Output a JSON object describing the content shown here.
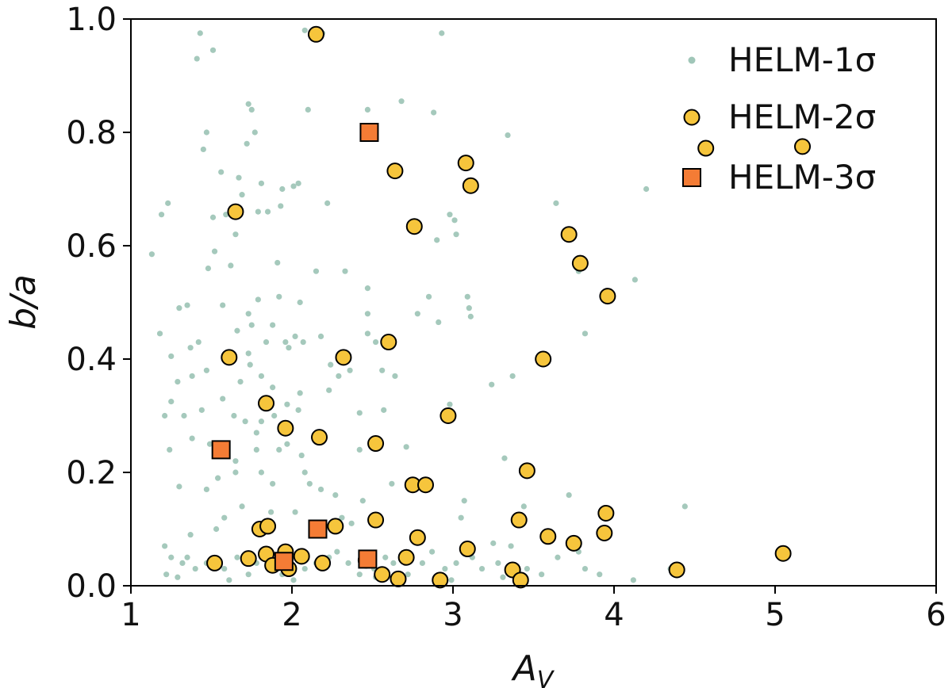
{
  "chart_data": {
    "type": "scatter",
    "xlabel": "A_V",
    "ylabel": "b/a",
    "xlim": [
      1,
      6
    ],
    "ylim": [
      0,
      1
    ],
    "xticks": [
      "1",
      "2",
      "3",
      "4",
      "5",
      "6"
    ],
    "yticks": [
      "0.0",
      "0.2",
      "0.4",
      "0.6",
      "0.8",
      "1.0"
    ],
    "grid": false,
    "legend_position": "top-right",
    "series": [
      {
        "name": "HELM-1σ",
        "marker": "dot",
        "color": "#8fbcab",
        "points": [
          [
            1.43,
            0.975
          ],
          [
            1.51,
            0.945
          ],
          [
            1.41,
            0.93
          ],
          [
            2.08,
            0.98
          ],
          [
            2.93,
            0.975
          ],
          [
            2.19,
            0.975
          ],
          [
            1.73,
            0.85
          ],
          [
            1.75,
            0.84
          ],
          [
            2.1,
            0.84
          ],
          [
            1.47,
            0.8
          ],
          [
            2.68,
            0.855
          ],
          [
            2.88,
            0.835
          ],
          [
            2.47,
            0.84
          ],
          [
            3.34,
            0.795
          ],
          [
            1.77,
            0.8
          ],
          [
            1.72,
            0.78
          ],
          [
            1.45,
            0.77
          ],
          [
            1.56,
            0.73
          ],
          [
            1.67,
            0.72
          ],
          [
            1.81,
            0.71
          ],
          [
            1.94,
            0.7
          ],
          [
            2.01,
            0.705
          ],
          [
            2.04,
            0.71
          ],
          [
            1.69,
            0.69
          ],
          [
            1.93,
            0.67
          ],
          [
            1.23,
            0.675
          ],
          [
            1.59,
            0.655
          ],
          [
            2.22,
            0.675
          ],
          [
            1.51,
            0.65
          ],
          [
            1.19,
            0.655
          ],
          [
            1.65,
            0.62
          ],
          [
            1.79,
            0.66
          ],
          [
            1.85,
            0.66
          ],
          [
            2.98,
            0.655
          ],
          [
            3.01,
            0.645
          ],
          [
            3.64,
            0.675
          ],
          [
            4.2,
            0.7
          ],
          [
            3.02,
            0.62
          ],
          [
            2.9,
            0.61
          ],
          [
            1.13,
            0.585
          ],
          [
            1.52,
            0.59
          ],
          [
            1.62,
            0.565
          ],
          [
            1.48,
            0.56
          ],
          [
            1.91,
            0.57
          ],
          [
            2.15,
            0.555
          ],
          [
            2.33,
            0.555
          ],
          [
            3.78,
            0.555
          ],
          [
            4.13,
            0.54
          ],
          [
            1.35,
            0.495
          ],
          [
            1.57,
            0.495
          ],
          [
            1.73,
            0.48
          ],
          [
            1.79,
            0.505
          ],
          [
            1.92,
            0.51
          ],
          [
            2.05,
            0.5
          ],
          [
            2.47,
            0.525
          ],
          [
            2.85,
            0.51
          ],
          [
            3.09,
            0.51
          ],
          [
            1.3,
            0.49
          ],
          [
            1.88,
            0.46
          ],
          [
            1.75,
            0.46
          ],
          [
            1.66,
            0.45
          ],
          [
            2.47,
            0.48
          ],
          [
            2.78,
            0.48
          ],
          [
            3.1,
            0.49
          ],
          [
            3.82,
            0.445
          ],
          [
            2.91,
            0.465
          ],
          [
            3.11,
            0.475
          ],
          [
            1.18,
            0.445
          ],
          [
            1.42,
            0.43
          ],
          [
            1.37,
            0.42
          ],
          [
            1.25,
            0.405
          ],
          [
            1.62,
            0.41
          ],
          [
            1.73,
            0.41
          ],
          [
            1.84,
            0.43
          ],
          [
            1.96,
            0.43
          ],
          [
            2.02,
            0.44
          ],
          [
            2.18,
            0.44
          ],
          [
            2.47,
            0.445
          ],
          [
            2.52,
            0.43
          ],
          [
            1.98,
            0.42
          ],
          [
            2.07,
            0.43
          ],
          [
            1.74,
            0.39
          ],
          [
            1.47,
            0.38
          ],
          [
            1.38,
            0.37
          ],
          [
            1.29,
            0.36
          ],
          [
            1.68,
            0.36
          ],
          [
            1.81,
            0.37
          ],
          [
            1.88,
            0.35
          ],
          [
            2.24,
            0.39
          ],
          [
            2.36,
            0.38
          ],
          [
            2.29,
            0.37
          ],
          [
            2.23,
            0.345
          ],
          [
            2.56,
            0.38
          ],
          [
            2.64,
            0.37
          ],
          [
            2.05,
            0.34
          ],
          [
            1.97,
            0.32
          ],
          [
            3.24,
            0.355
          ],
          [
            3.37,
            0.37
          ],
          [
            1.57,
            0.33
          ],
          [
            1.44,
            0.31
          ],
          [
            1.25,
            0.325
          ],
          [
            1.21,
            0.3
          ],
          [
            1.33,
            0.3
          ],
          [
            1.64,
            0.3
          ],
          [
            1.71,
            0.29
          ],
          [
            1.81,
            0.29
          ],
          [
            1.89,
            0.3
          ],
          [
            2.04,
            0.31
          ],
          [
            2.42,
            0.305
          ],
          [
            2.57,
            0.31
          ],
          [
            2.98,
            0.32
          ],
          [
            2.94,
            0.3
          ],
          [
            1.38,
            0.26
          ],
          [
            1.49,
            0.25
          ],
          [
            1.24,
            0.24
          ],
          [
            1.78,
            0.27
          ],
          [
            1.78,
            0.24
          ],
          [
            1.97,
            0.25
          ],
          [
            1.65,
            0.22
          ],
          [
            1.92,
            0.24
          ],
          [
            2.06,
            0.23
          ],
          [
            2.42,
            0.24
          ],
          [
            2.71,
            0.245
          ],
          [
            3.32,
            0.225
          ],
          [
            3.46,
            0.21
          ],
          [
            1.65,
            0.2
          ],
          [
            1.81,
            0.2
          ],
          [
            1.88,
            0.18
          ],
          [
            1.54,
            0.19
          ],
          [
            1.47,
            0.17
          ],
          [
            1.3,
            0.175
          ],
          [
            2.08,
            0.2
          ],
          [
            2.11,
            0.18
          ],
          [
            2.18,
            0.17
          ],
          [
            2.27,
            0.16
          ],
          [
            2.62,
            0.18
          ],
          [
            2.73,
            0.17
          ],
          [
            2.44,
            0.15
          ],
          [
            3.07,
            0.15
          ],
          [
            3.42,
            0.12
          ],
          [
            3.44,
            0.14
          ],
          [
            3.72,
            0.16
          ],
          [
            4.44,
            0.14
          ],
          [
            1.69,
            0.14
          ],
          [
            1.87,
            0.13
          ],
          [
            2.02,
            0.13
          ],
          [
            2.31,
            0.12
          ],
          [
            2.37,
            0.11
          ],
          [
            1.58,
            0.12
          ],
          [
            1.53,
            0.1
          ],
          [
            1.37,
            0.09
          ],
          [
            1.21,
            0.07
          ],
          [
            3.05,
            0.12
          ],
          [
            3.36,
            0.07
          ],
          [
            3.25,
            0.075
          ],
          [
            3.78,
            0.06
          ],
          [
            1.25,
            0.05
          ],
          [
            1.32,
            0.04
          ],
          [
            1.4,
            0.03
          ],
          [
            1.35,
            0.05
          ],
          [
            1.47,
            0.04
          ],
          [
            1.58,
            0.03
          ],
          [
            1.66,
            0.05
          ],
          [
            1.73,
            0.02
          ],
          [
            1.78,
            0.04
          ],
          [
            1.82,
            0.05
          ],
          [
            1.87,
            0.06
          ],
          [
            1.94,
            0.02
          ],
          [
            2.08,
            0.03
          ],
          [
            2.15,
            0.04
          ],
          [
            2.23,
            0.05
          ],
          [
            2.28,
            0.06
          ],
          [
            2.35,
            0.04
          ],
          [
            2.42,
            0.02
          ],
          [
            2.51,
            0.03
          ],
          [
            2.58,
            0.05
          ],
          [
            2.63,
            0.04
          ],
          [
            2.72,
            0.02
          ],
          [
            2.81,
            0.04
          ],
          [
            2.87,
            0.06
          ],
          [
            2.95,
            0.03
          ],
          [
            3.02,
            0.04
          ],
          [
            3.12,
            0.05
          ],
          [
            3.18,
            0.03
          ],
          [
            3.28,
            0.04
          ],
          [
            3.35,
            0.02
          ],
          [
            3.46,
            0.03
          ],
          [
            3.55,
            0.02
          ],
          [
            3.65,
            0.05
          ],
          [
            3.82,
            0.03
          ],
          [
            3.91,
            0.02
          ],
          [
            4.12,
            0.01
          ],
          [
            4.35,
            0.03
          ],
          [
            1.22,
            0.02
          ],
          [
            1.29,
            0.015
          ],
          [
            1.61,
            0.01
          ],
          [
            2.01,
            0.01
          ],
          [
            2.52,
            0.015
          ],
          [
            2.99,
            0.01
          ],
          [
            3.31,
            0.015
          ]
        ]
      },
      {
        "name": "HELM-2σ",
        "marker": "circle",
        "color": "#f6c53c",
        "points": [
          [
            2.15,
            0.973
          ],
          [
            4.57,
            0.772
          ],
          [
            5.17,
            0.775
          ],
          [
            3.08,
            0.746
          ],
          [
            2.64,
            0.732
          ],
          [
            3.11,
            0.706
          ],
          [
            1.65,
            0.66
          ],
          [
            2.76,
            0.634
          ],
          [
            3.72,
            0.62
          ],
          [
            3.79,
            0.569
          ],
          [
            3.96,
            0.511
          ],
          [
            1.61,
            0.403
          ],
          [
            2.32,
            0.403
          ],
          [
            2.6,
            0.43
          ],
          [
            3.56,
            0.4
          ],
          [
            1.84,
            0.322
          ],
          [
            2.97,
            0.3
          ],
          [
            1.96,
            0.278
          ],
          [
            2.17,
            0.262
          ],
          [
            2.52,
            0.251
          ],
          [
            3.46,
            0.203
          ],
          [
            2.75,
            0.178
          ],
          [
            2.83,
            0.178
          ],
          [
            3.95,
            0.128
          ],
          [
            2.52,
            0.116
          ],
          [
            3.41,
            0.116
          ],
          [
            1.8,
            0.1
          ],
          [
            1.85,
            0.105
          ],
          [
            2.27,
            0.105
          ],
          [
            3.94,
            0.093
          ],
          [
            3.59,
            0.087
          ],
          [
            2.78,
            0.085
          ],
          [
            3.75,
            0.075
          ],
          [
            5.05,
            0.057
          ],
          [
            3.09,
            0.065
          ],
          [
            1.52,
            0.04
          ],
          [
            1.73,
            0.048
          ],
          [
            1.84,
            0.056
          ],
          [
            1.88,
            0.036
          ],
          [
            1.98,
            0.03
          ],
          [
            2.06,
            0.052
          ],
          [
            2.19,
            0.04
          ],
          [
            2.46,
            0.045
          ],
          [
            2.71,
            0.05
          ],
          [
            3.37,
            0.028
          ],
          [
            4.39,
            0.028
          ],
          [
            2.56,
            0.02
          ],
          [
            2.66,
            0.012
          ],
          [
            2.92,
            0.01
          ],
          [
            3.42,
            0.01
          ],
          [
            1.96,
            0.06
          ]
        ]
      },
      {
        "name": "HELM-3σ",
        "marker": "square",
        "color": "#f47c35",
        "points": [
          [
            2.48,
            0.8
          ],
          [
            1.56,
            0.24
          ],
          [
            2.16,
            0.1
          ],
          [
            1.95,
            0.043
          ],
          [
            2.47,
            0.047
          ]
        ]
      }
    ]
  }
}
